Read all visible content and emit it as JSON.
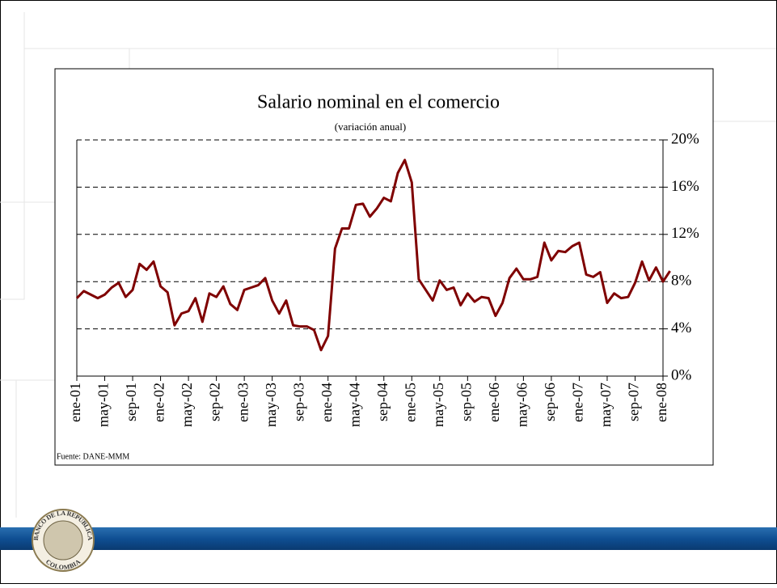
{
  "chart_data": {
    "type": "line",
    "title": "Salario nominal en el comercio",
    "subtitle": "(variación anual)",
    "source": "Fuente: DANE-MMM",
    "categories": [
      "ene-01",
      null,
      null,
      null,
      "may-01",
      null,
      null,
      null,
      "sep-01",
      null,
      null,
      null,
      "ene-02",
      null,
      null,
      null,
      "may-02",
      null,
      null,
      null,
      "sep-02",
      null,
      null,
      null,
      "ene-03",
      null,
      null,
      null,
      "may-03",
      null,
      null,
      null,
      "sep-03",
      null,
      null,
      null,
      "ene-04",
      null,
      null,
      null,
      "may-04",
      null,
      null,
      null,
      "sep-04",
      null,
      null,
      null,
      "ene-05",
      null,
      null,
      null,
      "may-05",
      null,
      null,
      null,
      "sep-05",
      null,
      null,
      null,
      "ene-06",
      null,
      null,
      null,
      "may-06",
      null,
      null,
      null,
      "sep-06",
      null,
      null,
      null,
      "ene-07",
      null,
      null,
      null,
      "may-07",
      null,
      null,
      null,
      "sep-07",
      null,
      null,
      null,
      "ene-08",
      null
    ],
    "series": [
      {
        "color": "#7f0000",
        "values": [
          6.6,
          7.2,
          6.9,
          6.6,
          6.9,
          7.5,
          7.9,
          6.7,
          7.3,
          9.5,
          9.0,
          9.7,
          7.6,
          7.1,
          4.3,
          5.3,
          5.5,
          6.6,
          4.6,
          7.0,
          6.7,
          7.6,
          6.1,
          5.6,
          7.3,
          7.5,
          7.7,
          8.3,
          6.4,
          5.3,
          6.4,
          4.3,
          4.2,
          4.2,
          3.9,
          2.2,
          3.4,
          10.8,
          12.5,
          12.5,
          14.5,
          14.6,
          13.5,
          14.2,
          15.1,
          14.8,
          17.2,
          18.3,
          16.4,
          8.2,
          7.3,
          6.4,
          8.1,
          7.3,
          7.5,
          6.0,
          7.0,
          6.3,
          6.7,
          6.6,
          5.1,
          6.2,
          8.3,
          9.1,
          8.2,
          8.2,
          8.4,
          11.3,
          9.8,
          10.6,
          10.5,
          11.0,
          11.3,
          8.6,
          8.4,
          8.8,
          6.2,
          7.0,
          6.6,
          6.7,
          7.9,
          9.7,
          8.1,
          9.2,
          8.0,
          8.9
        ]
      }
    ],
    "ylim": [
      0,
      20
    ],
    "yticks": [
      {
        "value": 0,
        "label": "0%"
      },
      {
        "value": 4,
        "label": "4%"
      },
      {
        "value": 8,
        "label": "8%"
      },
      {
        "value": 12,
        "label": "12%"
      },
      {
        "value": 16,
        "label": "16%"
      },
      {
        "value": 20,
        "label": "20%"
      }
    ],
    "grid": true,
    "y_axis_side": "right"
  },
  "logo": {
    "top": "BANCO DE LA REPUBLICA",
    "bottom": "COLOMBIA"
  }
}
